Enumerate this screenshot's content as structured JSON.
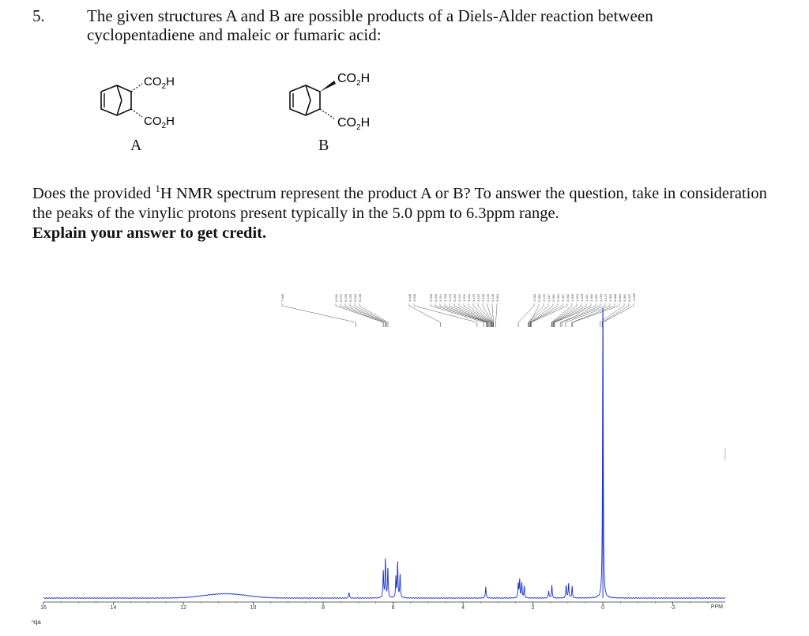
{
  "question": {
    "number": "5.",
    "intro": "The given structures A and B are possible products of a Diels-Alder reaction between cyclopentadiene and maleic or fumaric acid:",
    "structure_a": {
      "label": "A",
      "top_group": "CO2H",
      "bottom_group": "CO2H"
    },
    "structure_b": {
      "label": "B",
      "top_group": "CO2H",
      "bottom_group": "CO2H"
    },
    "prompt_part1": "Does the provided ",
    "prompt_sup": "1",
    "prompt_part2": "H NMR spectrum represent the product A or B? To answer the question, take in consideration the peaks of the vinylic protons present typically in the 5.0 ppm to 6.3ppm range.",
    "prompt_bold": "Explain your answer to get credit."
  },
  "corner_label": "ⁿqa",
  "chart_data": {
    "type": "line",
    "xlabel": "PPM",
    "x_reversed": true,
    "xlim": [
      16,
      -3.5
    ],
    "ticks": [
      16,
      14,
      12,
      10,
      8,
      6,
      4,
      2,
      0,
      -2
    ],
    "tick_labels": [
      "16",
      "14",
      "12",
      "10",
      "8",
      "6",
      "4",
      "2",
      "0",
      "-2"
    ],
    "peak_labels": [
      "7.068",
      "6.281",
      "6.279",
      "6.228",
      "6.226",
      "6.184",
      "6.148",
      "4.648",
      "3.598",
      "3.398",
      "3.330",
      "3.314",
      "3.298",
      "3.278",
      "3.253",
      "3.222",
      "3.201",
      "3.184",
      "3.175",
      "3.163",
      "3.158",
      "3.139",
      "3.128",
      "3.064",
      "2.418",
      "2.089",
      "2.139",
      "2.117",
      "2.081",
      "2.062",
      "2.067",
      "2.042",
      "1.466",
      "1.454",
      "1.428",
      "1.411",
      "1.393",
      "1.382",
      "1.218",
      "1.175",
      "1.066",
      "0.888",
      "0.864",
      "0.081",
      "0.022",
      "-0.002"
    ],
    "peaks": [
      {
        "ppm": 7.26,
        "height": 0.02
      },
      {
        "ppm": 6.28,
        "height": 0.09
      },
      {
        "ppm": 6.22,
        "height": 0.13
      },
      {
        "ppm": 6.15,
        "height": 0.1
      },
      {
        "ppm": 5.92,
        "height": 0.07
      },
      {
        "ppm": 5.87,
        "height": 0.12
      },
      {
        "ppm": 5.8,
        "height": 0.08
      },
      {
        "ppm": 3.35,
        "height": 0.04
      },
      {
        "ppm": 2.42,
        "height": 0.05
      },
      {
        "ppm": 2.38,
        "height": 0.06
      },
      {
        "ppm": 2.32,
        "height": 0.05
      },
      {
        "ppm": 2.25,
        "height": 0.04
      },
      {
        "ppm": 1.55,
        "height": 0.025
      },
      {
        "ppm": 1.46,
        "height": 0.045
      },
      {
        "ppm": 1.05,
        "height": 0.045
      },
      {
        "ppm": 0.98,
        "height": 0.05
      },
      {
        "ppm": 0.88,
        "height": 0.04
      },
      {
        "ppm": 0.0,
        "height": 1.0
      }
    ],
    "broad_hump": {
      "ppm": 10.8,
      "height": 0.015
    },
    "integral_step_ppm": [
      7.07,
      6.2,
      5.9,
      3.2,
      2.3,
      1.4,
      1.0,
      0.0
    ],
    "colors": {
      "spectrum": "#1a2fd0",
      "axis": "#333333",
      "labels": "#444444"
    }
  }
}
